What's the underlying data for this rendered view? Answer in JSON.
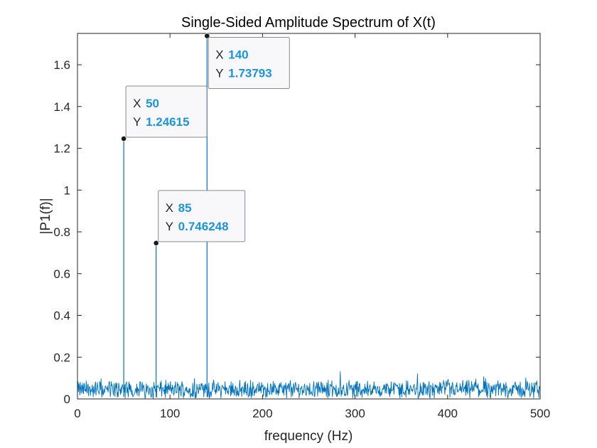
{
  "chart_data": {
    "type": "line",
    "title": "Single-Sided Amplitude Spectrum of X(t)",
    "xlabel": "frequency (Hz)",
    "ylabel": "|P1(f)|",
    "xlim": [
      0,
      500
    ],
    "ylim": [
      0,
      1.75
    ],
    "xticks": [
      0,
      100,
      200,
      300,
      400,
      500
    ],
    "yticks": [
      0,
      0.2,
      0.4,
      0.6,
      0.8,
      1,
      1.2,
      1.4,
      1.6
    ],
    "xtick_labels": [
      "0",
      "100",
      "200",
      "300",
      "400",
      "500"
    ],
    "ytick_labels": [
      "0",
      "0.2",
      "0.4",
      "0.6",
      "0.8",
      "1",
      "1.2",
      "1.4",
      "1.6"
    ],
    "grid": false,
    "series_color": "#0072bd",
    "noise_floor": {
      "typical_min": 0.01,
      "typical_max": 0.14
    },
    "peaks": [
      {
        "x": 50,
        "y": 1.24615
      },
      {
        "x": 85,
        "y": 0.746248
      },
      {
        "x": 140,
        "y": 1.73793
      }
    ],
    "datatips": [
      {
        "x_key": "X",
        "x_value": "50",
        "y_key": "Y",
        "y_value": "1.24615"
      },
      {
        "x_key": "X",
        "x_value": "85",
        "y_key": "Y",
        "y_value": "0.746248"
      },
      {
        "x_key": "X",
        "x_value": "140",
        "y_key": "Y",
        "y_value": "1.73793"
      }
    ]
  }
}
